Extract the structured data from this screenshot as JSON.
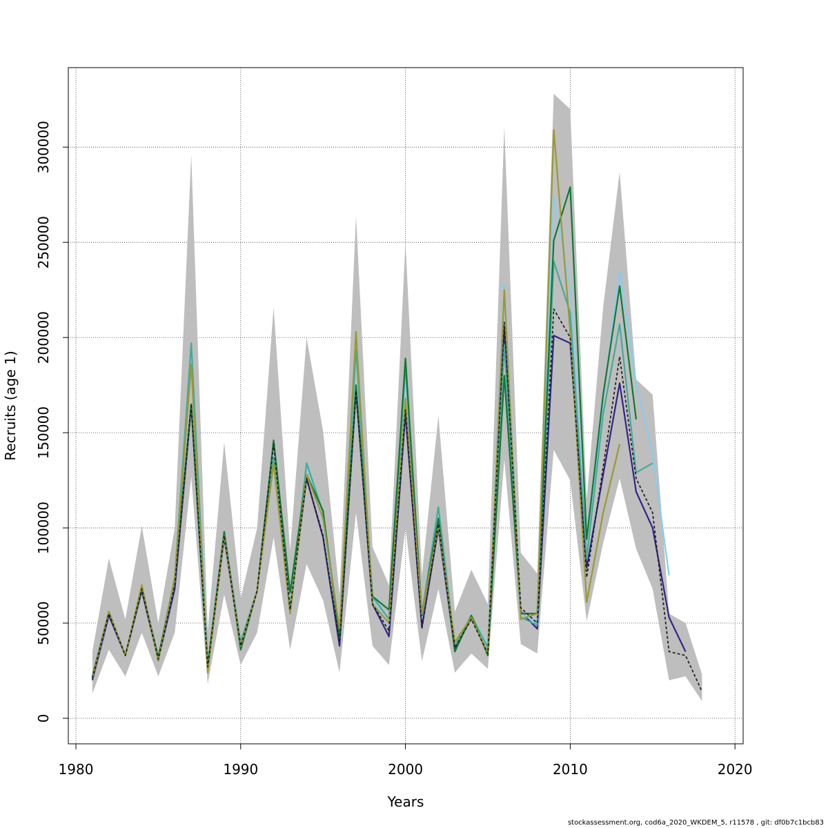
{
  "chart_data": {
    "type": "line",
    "title": "",
    "xlabel": "Years",
    "ylabel": "Recruits (age 1)",
    "xlim": [
      1980,
      2020
    ],
    "ylim": [
      0,
      330000
    ],
    "x_ticks": [
      1980,
      1990,
      2000,
      2010,
      2020
    ],
    "x_tick_labels": [
      "1980",
      "1990",
      "2000",
      "2010",
      "2020"
    ],
    "y_ticks": [
      0,
      50000,
      100000,
      150000,
      200000,
      250000,
      300000
    ],
    "y_tick_labels": [
      "0",
      "50000",
      "100000",
      "150000",
      "200000",
      "250000",
      "300000"
    ],
    "grid": true,
    "legend": "none",
    "confidence_band": {
      "color": "#bebebe",
      "x": [
        1981,
        1982,
        1983,
        1984,
        1985,
        1986,
        1987,
        1988,
        1989,
        1990,
        1991,
        1992,
        1993,
        1994,
        1995,
        1996,
        1997,
        1998,
        1999,
        2000,
        2001,
        2002,
        2003,
        2004,
        2005,
        2006,
        2007,
        2008,
        2009,
        2010,
        2011,
        2012,
        2013,
        2014,
        2015,
        2016,
        2017,
        2018
      ],
      "lower": [
        13000,
        36000,
        22000,
        45000,
        22000,
        45000,
        127000,
        18000,
        65000,
        28000,
        45000,
        95000,
        36000,
        81000,
        62000,
        24000,
        108000,
        38000,
        28000,
        100000,
        30000,
        68000,
        24000,
        34000,
        26000,
        136000,
        39000,
        34000,
        141000,
        125000,
        51000,
        92000,
        126000,
        89000,
        68000,
        20000,
        22000,
        9000
      ],
      "upper": [
        35000,
        84000,
        52000,
        101000,
        50000,
        100000,
        296000,
        46000,
        145000,
        63000,
        100000,
        216000,
        88000,
        200000,
        151000,
        65000,
        264000,
        90000,
        70000,
        250000,
        75000,
        159000,
        56000,
        78000,
        60000,
        311000,
        87000,
        76000,
        328000,
        320000,
        115000,
        216000,
        287000,
        178000,
        170000,
        55000,
        50000,
        23000
      ]
    },
    "series": [
      {
        "color": "#332288",
        "style": "solid",
        "x": [
          1981,
          1982,
          1983,
          1984,
          1985,
          1986,
          1987,
          1988,
          1989,
          1990,
          1991,
          1992,
          1993,
          1994,
          1995,
          1996,
          1997,
          1998,
          1999,
          2000,
          2001,
          2002,
          2003,
          2004,
          2005,
          2006,
          2007,
          2008,
          2009,
          2010,
          2011,
          2012,
          2013,
          2014,
          2015,
          2016,
          2017
        ],
        "values": [
          20000,
          54000,
          33000,
          67000,
          31000,
          68000,
          164000,
          26000,
          95000,
          38000,
          67000,
          145000,
          57000,
          126000,
          95000,
          38000,
          172000,
          60000,
          43000,
          160000,
          48000,
          100000,
          36000,
          53000,
          34000,
          205000,
          56000,
          47000,
          201000,
          197000,
          79000,
          128000,
          176000,
          119000,
          100000,
          53000,
          35000
        ]
      },
      {
        "color": "#88ccee",
        "style": "solid",
        "x": [
          1981,
          1982,
          1983,
          1984,
          1985,
          1986,
          1987,
          1988,
          1989,
          1990,
          1991,
          1992,
          1993,
          1994,
          1995,
          1996,
          1997,
          1998,
          1999,
          2000,
          2001,
          2002,
          2003,
          2004,
          2005,
          2006,
          2007,
          2008,
          2009,
          2010,
          2011,
          2012,
          2013,
          2014,
          2015,
          2016
        ],
        "values": [
          21000,
          56000,
          33000,
          69000,
          32000,
          72000,
          190000,
          28000,
          98000,
          39000,
          67000,
          141000,
          58000,
          133000,
          104000,
          45000,
          190000,
          63000,
          49000,
          182000,
          53000,
          110000,
          38000,
          53000,
          39000,
          228000,
          55000,
          50000,
          274000,
          226000,
          84000,
          168000,
          235000,
          176000,
          139000,
          75000
        ]
      },
      {
        "color": "#44aa99",
        "style": "solid",
        "x": [
          1981,
          1982,
          1983,
          1984,
          1985,
          1986,
          1987,
          1988,
          1989,
          1990,
          1991,
          1992,
          1993,
          1994,
          1995,
          1996,
          1997,
          1998,
          1999,
          2000,
          2001,
          2002,
          2003,
          2004,
          2005,
          2006,
          2007,
          2008,
          2009,
          2010,
          2011,
          2012,
          2013,
          2014,
          2015
        ],
        "values": [
          21000,
          56000,
          33000,
          69000,
          32000,
          74000,
          197000,
          28000,
          98000,
          40000,
          67000,
          137000,
          58000,
          134000,
          108000,
          46000,
          194000,
          64000,
          52000,
          185000,
          55000,
          111000,
          38000,
          54000,
          37000,
          196000,
          53000,
          49000,
          240000,
          213000,
          84000,
          160000,
          207000,
          129000,
          134000
        ]
      },
      {
        "color": "#117733",
        "style": "solid",
        "x": [
          1981,
          1982,
          1983,
          1984,
          1985,
          1986,
          1987,
          1988,
          1989,
          1990,
          1991,
          1992,
          1993,
          1994,
          1995,
          1996,
          1997,
          1998,
          1999,
          2000,
          2001,
          2002,
          2003,
          2004,
          2005,
          2006,
          2007,
          2008,
          2009,
          2010,
          2011,
          2012,
          2013,
          2014
        ],
        "values": [
          22000,
          56000,
          33000,
          68000,
          32000,
          73000,
          165000,
          27000,
          98000,
          36000,
          67000,
          146000,
          66000,
          128000,
          109000,
          42000,
          175000,
          64000,
          57000,
          189000,
          54000,
          105000,
          35000,
          54000,
          33000,
          180000,
          55000,
          55000,
          251000,
          279000,
          94000,
          170000,
          227000,
          157000
        ]
      },
      {
        "color": "#999933",
        "style": "solid",
        "x": [
          1981,
          1982,
          1983,
          1984,
          1985,
          1986,
          1987,
          1988,
          1989,
          1990,
          1991,
          1992,
          1993,
          1994,
          1995,
          1996,
          1997,
          1998,
          1999,
          2000,
          2001,
          2002,
          2003,
          2004,
          2005,
          2006,
          2007,
          2008,
          2009,
          2010,
          2011,
          2012,
          2013
        ],
        "values": [
          21000,
          56000,
          33000,
          70000,
          30000,
          74000,
          186000,
          24000,
          96000,
          38000,
          67000,
          134000,
          55000,
          128000,
          105000,
          47000,
          203000,
          60000,
          50000,
          168000,
          55000,
          101000,
          40000,
          53000,
          34000,
          225000,
          52000,
          55000,
          309000,
          203000,
          61000,
          108000,
          144000
        ]
      },
      {
        "color": "#222222",
        "style": "dashed",
        "x": [
          1981,
          1982,
          1983,
          1984,
          1985,
          1986,
          1987,
          1988,
          1989,
          1990,
          1991,
          1992,
          1993,
          1994,
          1995,
          1996,
          1997,
          1998,
          1999,
          2000,
          2001,
          2002,
          2003,
          2004,
          2005,
          2006,
          2007,
          2008,
          2009,
          2010,
          2011,
          2012,
          2013,
          2014,
          2015,
          2016,
          2017,
          2018
        ],
        "values": [
          21000,
          55000,
          33000,
          68000,
          31000,
          70000,
          165000,
          27000,
          96000,
          38000,
          67000,
          144000,
          57000,
          126000,
          96000,
          40000,
          172000,
          60000,
          46000,
          162000,
          47000,
          102000,
          37000,
          52000,
          34000,
          208000,
          58000,
          50000,
          215000,
          200000,
          74000,
          132000,
          190000,
          126000,
          108000,
          35000,
          33000,
          14000
        ]
      }
    ]
  },
  "footer": "stockassessment.org, cod6a_2020_WKDEM_5, r11578 , git: df0b7c1bcb83"
}
